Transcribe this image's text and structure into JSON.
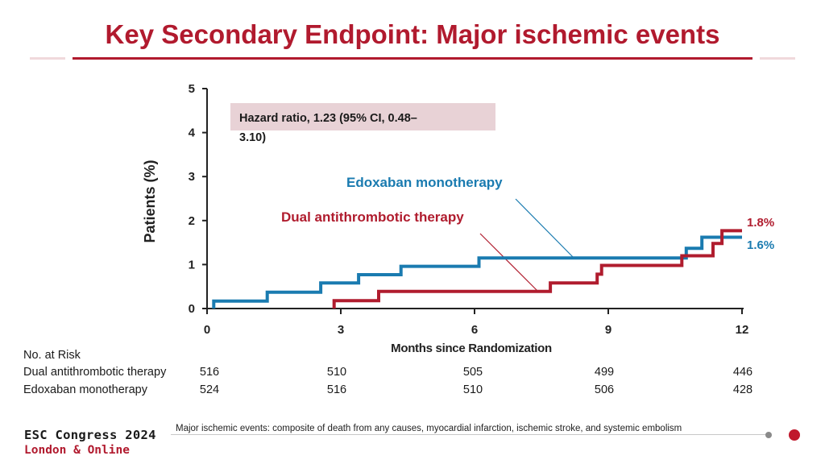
{
  "slide": {
    "title": "Key Secondary Endpoint: Major ischemic events",
    "footnote": "Major ischemic events: composite of death from any causes, myocardial infarction, ischemic stroke, and systemic embolism",
    "logo_line1": "ESC Congress 2024",
    "logo_line2": "London & Online",
    "brand_color": "#b11a2e"
  },
  "chart_data": {
    "type": "line",
    "step": true,
    "xlabel": "Months since Randomization",
    "ylabel": "Patients (%)",
    "xlim": [
      0,
      12
    ],
    "ylim": [
      0,
      5
    ],
    "xticks": [
      0,
      3,
      6,
      9,
      12
    ],
    "yticks": [
      0,
      1,
      2,
      3,
      4,
      5
    ],
    "grid": false,
    "annotation": "Hazard ratio, 1.23 (95% CI, 0.48–3.10)",
    "series": [
      {
        "name": "Edoxaban monotherapy",
        "color": "#1a7bb0",
        "end_label": "1.6%",
        "points": [
          [
            0.15,
            0
          ],
          [
            0.15,
            0.17
          ],
          [
            1.35,
            0.17
          ],
          [
            1.35,
            0.37
          ],
          [
            2.55,
            0.37
          ],
          [
            2.55,
            0.58
          ],
          [
            3.4,
            0.58
          ],
          [
            3.4,
            0.77
          ],
          [
            4.35,
            0.77
          ],
          [
            4.35,
            0.96
          ],
          [
            6.1,
            0.96
          ],
          [
            6.1,
            1.15
          ],
          [
            10.75,
            1.15
          ],
          [
            10.75,
            1.37
          ],
          [
            11.1,
            1.37
          ],
          [
            11.1,
            1.62
          ],
          [
            12,
            1.62
          ]
        ]
      },
      {
        "name": "Dual antithrombotic therapy",
        "color": "#b01c2e",
        "end_label": "1.8%",
        "points": [
          [
            2.85,
            0
          ],
          [
            2.85,
            0.18
          ],
          [
            3.85,
            0.18
          ],
          [
            3.85,
            0.39
          ],
          [
            7.7,
            0.39
          ],
          [
            7.7,
            0.58
          ],
          [
            8.75,
            0.58
          ],
          [
            8.75,
            0.78
          ],
          [
            8.85,
            0.78
          ],
          [
            8.85,
            0.98
          ],
          [
            10.65,
            0.98
          ],
          [
            10.65,
            1.2
          ],
          [
            11.35,
            1.2
          ],
          [
            11.35,
            1.48
          ],
          [
            11.55,
            1.48
          ],
          [
            11.55,
            1.77
          ],
          [
            12,
            1.77
          ]
        ]
      }
    ],
    "risk_table": {
      "header": "No. at Risk",
      "times": [
        0,
        3,
        6,
        9,
        12
      ],
      "rows": [
        {
          "label": "Dual antithrombotic therapy",
          "values": [
            "516",
            "510",
            "505",
            "499",
            "446"
          ]
        },
        {
          "label": "Edoxaban monotherapy",
          "values": [
            "524",
            "516",
            "510",
            "506",
            "428"
          ]
        }
      ]
    }
  }
}
